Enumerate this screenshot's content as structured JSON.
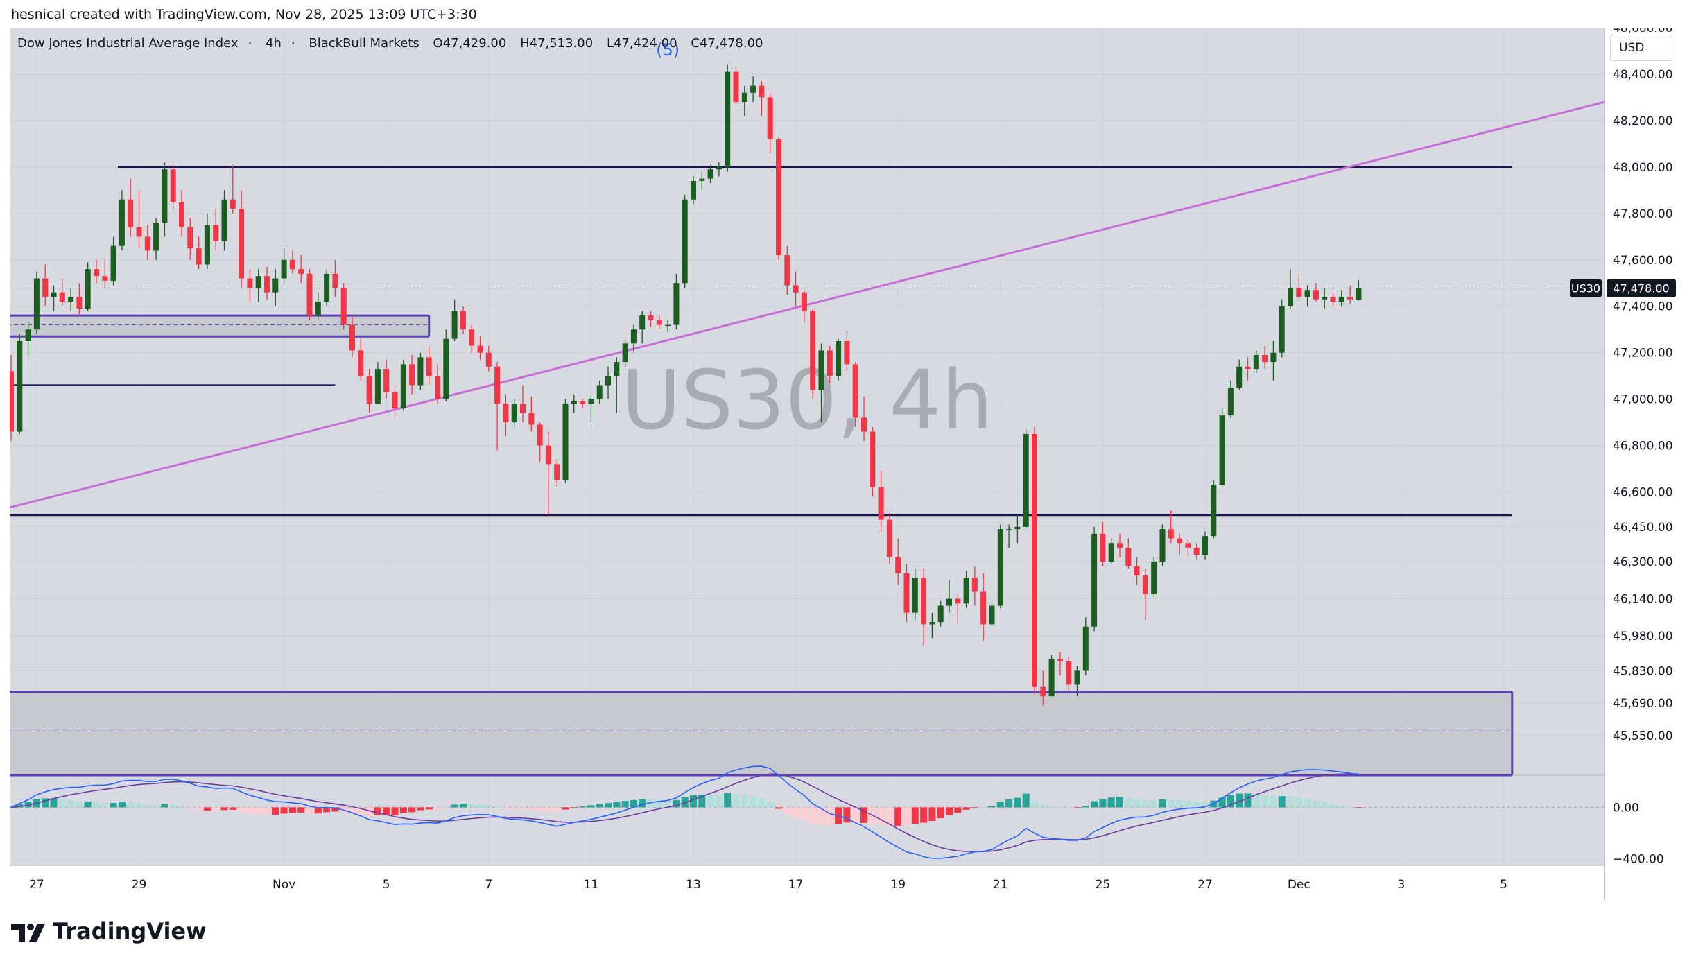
{
  "header": {
    "attribution": "hesnical created with TradingView.com, Nov 28, 2025 13:09 UTC+3:30"
  },
  "legend": {
    "symbol_name": "Dow Jones Industrial Average Index",
    "interval": "4h",
    "exchange": "BlackBull Markets",
    "open": "O47,429.00",
    "high": "H47,513.00",
    "low": "L47,424.00",
    "close": "C47,478.00"
  },
  "currency_button": "USD",
  "watermark": "US30, 4h",
  "wave_label": "(5)",
  "price_badge": {
    "symbol": "US30",
    "value": "47,478.00"
  },
  "footer": {
    "brand": "TradingView"
  },
  "colors": {
    "up": "#26a69a",
    "down": "#f23645",
    "up_body": "#1b5e20",
    "level_line": "#1a1450",
    "trend_line": "#c86dd7",
    "zone_fill": "#c4c6cb",
    "zone_border": "#5c3dbd",
    "macd_line": "#2962ff",
    "signal_line": "#6a3fa0",
    "background": "#d7dae0"
  },
  "chart_data": {
    "type": "candlestick",
    "symbol": "US30",
    "interval": "4h",
    "price_axis_ticks": [
      48400,
      48200,
      48000,
      47800,
      47600,
      47400,
      47200,
      47000,
      46800,
      46600,
      46450,
      46300,
      46140,
      45980,
      45830,
      45690,
      45550
    ],
    "price_axis_labels": [
      "48,400.00",
      "48,200.00",
      "48,000.00",
      "47,800.00",
      "47,600.00",
      "47,400.00",
      "47,200.00",
      "47,000.00",
      "46,800.00",
      "46,600.00",
      "46,450.00",
      "46,300.00",
      "46,140.00",
      "45,980.00",
      "45,830.00",
      "45,690.00",
      "45,550.00"
    ],
    "ylim": [
      45380,
      48600
    ],
    "time_axis_labels": [
      "27",
      "29",
      "Nov",
      "5",
      "7",
      "11",
      "13",
      "17",
      "19",
      "21",
      "25",
      "27",
      "Dec",
      "3",
      "5"
    ],
    "time_axis_bar_index": [
      3,
      15,
      32,
      44,
      56,
      68,
      80,
      92,
      104,
      116,
      128,
      140,
      151,
      163,
      175
    ],
    "candles": [
      [
        47120,
        47190,
        46820,
        46860
      ],
      [
        46860,
        47280,
        46850,
        47250
      ],
      [
        47250,
        47330,
        47180,
        47300
      ],
      [
        47300,
        47550,
        47280,
        47520
      ],
      [
        47520,
        47580,
        47400,
        47440
      ],
      [
        47440,
        47490,
        47380,
        47460
      ],
      [
        47460,
        47520,
        47400,
        47420
      ],
      [
        47420,
        47480,
        47380,
        47440
      ],
      [
        47440,
        47500,
        47360,
        47390
      ],
      [
        47390,
        47590,
        47380,
        47560
      ],
      [
        47560,
        47600,
        47500,
        47530
      ],
      [
        47530,
        47600,
        47480,
        47510
      ],
      [
        47510,
        47700,
        47490,
        47660
      ],
      [
        47660,
        47900,
        47640,
        47860
      ],
      [
        47860,
        47950,
        47700,
        47740
      ],
      [
        47740,
        47900,
        47650,
        47700
      ],
      [
        47700,
        47750,
        47600,
        47640
      ],
      [
        47640,
        47780,
        47600,
        47760
      ],
      [
        47760,
        48020,
        47700,
        47990
      ],
      [
        47990,
        48010,
        47820,
        47850
      ],
      [
        47850,
        47900,
        47700,
        47740
      ],
      [
        47740,
        47780,
        47600,
        47650
      ],
      [
        47650,
        47700,
        47560,
        47580
      ],
      [
        47580,
        47800,
        47560,
        47750
      ],
      [
        47750,
        47820,
        47640,
        47680
      ],
      [
        47680,
        47900,
        47640,
        47860
      ],
      [
        47860,
        48010,
        47800,
        47820
      ],
      [
        47820,
        47900,
        47480,
        47520
      ],
      [
        47520,
        47560,
        47420,
        47480
      ],
      [
        47480,
        47560,
        47420,
        47530
      ],
      [
        47530,
        47570,
        47430,
        47460
      ],
      [
        47460,
        47560,
        47400,
        47520
      ],
      [
        47520,
        47650,
        47500,
        47600
      ],
      [
        47600,
        47640,
        47540,
        47560
      ],
      [
        47560,
        47620,
        47500,
        47540
      ],
      [
        47540,
        47560,
        47340,
        47360
      ],
      [
        47360,
        47460,
        47340,
        47420
      ],
      [
        47420,
        47560,
        47400,
        47540
      ],
      [
        47540,
        47600,
        47440,
        47480
      ],
      [
        47480,
        47500,
        47300,
        47320
      ],
      [
        47320,
        47360,
        47180,
        47210
      ],
      [
        47210,
        47260,
        47080,
        47100
      ],
      [
        47100,
        47130,
        46940,
        46980
      ],
      [
        46980,
        47160,
        46980,
        47130
      ],
      [
        47130,
        47170,
        47000,
        47030
      ],
      [
        47030,
        47060,
        46920,
        46960
      ],
      [
        46960,
        47170,
        46950,
        47150
      ],
      [
        47150,
        47190,
        47020,
        47060
      ],
      [
        47060,
        47200,
        47040,
        47180
      ],
      [
        47180,
        47230,
        47060,
        47100
      ],
      [
        47100,
        47150,
        46980,
        47000
      ],
      [
        47000,
        47300,
        46990,
        47260
      ],
      [
        47260,
        47430,
        47250,
        47380
      ],
      [
        47380,
        47400,
        47280,
        47300
      ],
      [
        47300,
        47320,
        47200,
        47230
      ],
      [
        47230,
        47270,
        47170,
        47200
      ],
      [
        47200,
        47230,
        47120,
        47140
      ],
      [
        47140,
        47160,
        46780,
        46980
      ],
      [
        46980,
        47020,
        46840,
        46900
      ],
      [
        46900,
        47000,
        46880,
        46980
      ],
      [
        46980,
        47060,
        46900,
        46940
      ],
      [
        46940,
        47010,
        46860,
        46890
      ],
      [
        46890,
        46900,
        46730,
        46800
      ],
      [
        46800,
        46860,
        46500,
        46720
      ],
      [
        46720,
        46740,
        46620,
        46650
      ],
      [
        46650,
        47000,
        46640,
        46980
      ],
      [
        46980,
        47020,
        46940,
        46990
      ],
      [
        46990,
        47000,
        46960,
        46980
      ],
      [
        46980,
        47020,
        46900,
        47000
      ],
      [
        47000,
        47080,
        46980,
        47060
      ],
      [
        47060,
        47140,
        47000,
        47100
      ],
      [
        47100,
        47180,
        46940,
        47160
      ],
      [
        47160,
        47260,
        47140,
        47240
      ],
      [
        47240,
        47320,
        47200,
        47300
      ],
      [
        47300,
        47380,
        47240,
        47360
      ],
      [
        47360,
        47380,
        47310,
        47340
      ],
      [
        47340,
        47360,
        47300,
        47320
      ],
      [
        47320,
        47340,
        47290,
        47320
      ],
      [
        47320,
        47540,
        47300,
        47500
      ],
      [
        47500,
        47880,
        47480,
        47860
      ],
      [
        47860,
        47960,
        47840,
        47940
      ],
      [
        47940,
        47980,
        47900,
        47950
      ],
      [
        47950,
        48010,
        47930,
        47990
      ],
      [
        47990,
        48020,
        47960,
        48000
      ],
      [
        48000,
        48440,
        47980,
        48410
      ],
      [
        48410,
        48430,
        48260,
        48280
      ],
      [
        48280,
        48350,
        48220,
        48320
      ],
      [
        48320,
        48390,
        48280,
        48350
      ],
      [
        48350,
        48370,
        48220,
        48300
      ],
      [
        48300,
        48320,
        48060,
        48120
      ],
      [
        48120,
        48130,
        47600,
        47620
      ],
      [
        47620,
        47660,
        47450,
        47490
      ],
      [
        47490,
        47550,
        47400,
        47460
      ],
      [
        47460,
        47470,
        47330,
        47380
      ],
      [
        47380,
        47390,
        47000,
        47040
      ],
      [
        47040,
        47240,
        46900,
        47210
      ],
      [
        47210,
        47230,
        47070,
        47100
      ],
      [
        47100,
        47260,
        47080,
        47250
      ],
      [
        47250,
        47290,
        47120,
        47150
      ],
      [
        47150,
        47160,
        46880,
        46920
      ],
      [
        46920,
        47010,
        46820,
        46860
      ],
      [
        46860,
        46880,
        46580,
        46620
      ],
      [
        46620,
        46690,
        46430,
        46480
      ],
      [
        46480,
        46510,
        46290,
        46320
      ],
      [
        46320,
        46400,
        46200,
        46250
      ],
      [
        46250,
        46290,
        46040,
        46080
      ],
      [
        46080,
        46270,
        46050,
        46230
      ],
      [
        46230,
        46270,
        45940,
        46030
      ],
      [
        46030,
        46080,
        45970,
        46040
      ],
      [
        46040,
        46130,
        46020,
        46110
      ],
      [
        46110,
        46220,
        46080,
        46140
      ],
      [
        46140,
        46160,
        46030,
        46120
      ],
      [
        46120,
        46260,
        46100,
        46230
      ],
      [
        46230,
        46280,
        46110,
        46170
      ],
      [
        46170,
        46250,
        45960,
        46030
      ],
      [
        46030,
        46120,
        46020,
        46110
      ],
      [
        46110,
        46460,
        46100,
        46440
      ],
      [
        46440,
        46460,
        46360,
        46440
      ],
      [
        46440,
        46500,
        46380,
        46450
      ],
      [
        46450,
        46870,
        46440,
        46850
      ],
      [
        46850,
        46880,
        45730,
        45760
      ],
      [
        45760,
        45830,
        45680,
        45720
      ],
      [
        45720,
        45900,
        45720,
        45880
      ],
      [
        45880,
        45910,
        45810,
        45870
      ],
      [
        45870,
        45890,
        45740,
        45770
      ],
      [
        45770,
        45850,
        45720,
        45830
      ],
      [
        45830,
        46060,
        45810,
        46020
      ],
      [
        46020,
        46450,
        46000,
        46420
      ],
      [
        46420,
        46470,
        46280,
        46300
      ],
      [
        46300,
        46400,
        46290,
        46380
      ],
      [
        46380,
        46420,
        46320,
        46360
      ],
      [
        46360,
        46400,
        46270,
        46280
      ],
      [
        46280,
        46320,
        46200,
        46240
      ],
      [
        46240,
        46270,
        46050,
        46160
      ],
      [
        46160,
        46320,
        46150,
        46300
      ],
      [
        46300,
        46460,
        46280,
        46440
      ],
      [
        46440,
        46520,
        46380,
        46400
      ],
      [
        46400,
        46420,
        46330,
        46380
      ],
      [
        46380,
        46400,
        46320,
        46360
      ],
      [
        46360,
        46380,
        46310,
        46330
      ],
      [
        46330,
        46430,
        46310,
        46410
      ],
      [
        46410,
        46650,
        46400,
        46630
      ],
      [
        46630,
        46960,
        46620,
        46930
      ],
      [
        46930,
        47080,
        46920,
        47050
      ],
      [
        47050,
        47170,
        47040,
        47140
      ],
      [
        47140,
        47180,
        47080,
        47130
      ],
      [
        47130,
        47210,
        47110,
        47190
      ],
      [
        47190,
        47230,
        47130,
        47160
      ],
      [
        47160,
        47250,
        47080,
        47200
      ],
      [
        47200,
        47430,
        47180,
        47400
      ],
      [
        47400,
        47560,
        47390,
        47480
      ],
      [
        47480,
        47540,
        47420,
        47440
      ],
      [
        47440,
        47490,
        47400,
        47470
      ],
      [
        47470,
        47500,
        47420,
        47430
      ],
      [
        47430,
        47480,
        47390,
        47440
      ],
      [
        47440,
        47460,
        47400,
        47420
      ],
      [
        47420,
        47470,
        47400,
        47440
      ],
      [
        47440,
        47490,
        47410,
        47430
      ],
      [
        47429,
        47513,
        47424,
        47478
      ]
    ],
    "horizontal_levels": [
      {
        "price": 48000,
        "from_bar": 13,
        "to_bar": 176
      },
      {
        "price": 47060,
        "from_bar": 0,
        "to_bar": 38
      },
      {
        "price": 46500,
        "from_bar": 0,
        "to_bar": 176
      }
    ],
    "zones": [
      {
        "top": 47360,
        "bottom": 47270,
        "mid": 47320,
        "from_bar": 0,
        "to_bar": 49
      },
      {
        "top": 45740,
        "bottom": 45380,
        "mid": 45570,
        "from_bar": 0,
        "to_bar": 176
      }
    ],
    "trend_line": {
      "from_bar": 0,
      "from_price": 46530,
      "to_bar": 184,
      "to_price": 48280
    },
    "wave_label_at": {
      "bar": 77,
      "price": 48480
    },
    "last_price": 47478,
    "macd": {
      "axis_ticks": [
        0,
        -400
      ],
      "axis_labels": [
        "0.00",
        "−400.00"
      ],
      "ylim": [
        -450,
        250
      ]
    }
  }
}
